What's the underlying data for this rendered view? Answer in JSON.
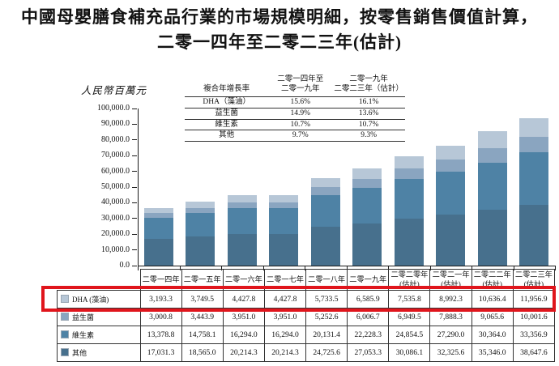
{
  "title": {
    "line1": "中國母嬰膳食補充品行業的市場規模明細，按零售銷售價值計算，",
    "line2": "二零一四年至二零二三年(估計)"
  },
  "y_axis": {
    "label": "人民幣百萬元",
    "ticks": [
      "100,000.0",
      "90,000.0",
      "80,000.0",
      "70,000.0",
      "60,000.0",
      "50,000.0",
      "40,000.0",
      "30,000.0",
      "20,000.0",
      "10,000.0",
      "0.0"
    ]
  },
  "cagr_table": {
    "col1_header": "複合年增長率",
    "col2_header": "二零一四年至\n二零一九年",
    "col3_header": "二零一九年\n二零二三年（估計）",
    "rows": [
      {
        "label": "DHA（藻油）",
        "cagr_2014_2019": "15.6%",
        "cagr_2019_2023": "16.1%"
      },
      {
        "label": "益生菌",
        "cagr_2014_2019": "14.9%",
        "cagr_2019_2023": "13.6%"
      },
      {
        "label": "維生素",
        "cagr_2014_2019": "10.7%",
        "cagr_2019_2023": "10.7%"
      },
      {
        "label": "其他",
        "cagr_2014_2019": "9.7%",
        "cagr_2019_2023": "9.3%"
      }
    ]
  },
  "chart_data": {
    "type": "bar",
    "stacked": true,
    "title": "中國母嬰膳食補充品行業的市場規模明細，按零售銷售價值計算，二零一四年至二零二三年(估計)",
    "ylabel": "人民幣百萬元",
    "ylim": [
      0,
      100000
    ],
    "ytick_step": 10000,
    "grid": false,
    "legend_position": "bottom-table",
    "stack_order_bottom_to_top": [
      "其他",
      "維生素",
      "益生菌",
      "DHA（藻油）"
    ],
    "categories": [
      "二零一四年",
      "二零一五年",
      "二零一六年",
      "二零一七年",
      "二零一八年",
      "二零一九年",
      "二零二零年\n(估計)",
      "二零二一年\n(估計)",
      "二零二二年\n(估計)",
      "二零二三年\n(估計)"
    ],
    "series": [
      {
        "name": "DHA（藻油）",
        "color": "#b7c7d7",
        "values": [
          3193.3,
          3749.5,
          4427.8,
          4427.8,
          5733.5,
          6585.9,
          7535.8,
          8992.3,
          10636.4,
          11956.9
        ]
      },
      {
        "name": "益生菌",
        "color": "#8aa5c0",
        "values": [
          3000.8,
          3443.9,
          3951.0,
          3951.0,
          5252.6,
          6006.7,
          6949.5,
          7888.3,
          9065.6,
          10001.6
        ]
      },
      {
        "name": "維生素",
        "color": "#4e82a5",
        "values": [
          13378.8,
          14758.1,
          16294.0,
          16294.0,
          20131.4,
          22228.3,
          24854.5,
          27290.0,
          30364.0,
          33356.9
        ]
      },
      {
        "name": "其他",
        "color": "#47708d",
        "values": [
          17031.3,
          18565.0,
          20214.3,
          20214.3,
          24725.6,
          27053.3,
          30086.1,
          32325.6,
          35346.0,
          38647.6
        ]
      }
    ]
  },
  "data_table": {
    "rows": [
      {
        "label": "DHA (藻油)",
        "swatch": "#b7c7d7",
        "highlighted": true,
        "values": [
          "3,193.3",
          "3,749.5",
          "4,427.8",
          "4,427.8",
          "5,733.5",
          "6,585.9",
          "7,535.8",
          "8,992.3",
          "10,636.4",
          "11,956.9"
        ]
      },
      {
        "label": "益生菌",
        "swatch": "#8aa5c0",
        "highlighted": false,
        "values": [
          "3,000.8",
          "3,443.9",
          "3,951.0",
          "3,951.0",
          "5,252.6",
          "6,006.7",
          "6,949.5",
          "7,888.3",
          "9,065.6",
          "10,001.6"
        ]
      },
      {
        "label": "維生素",
        "swatch": "#4e82a5",
        "highlighted": false,
        "values": [
          "13,378.8",
          "14,758.1",
          "16,294.0",
          "16,294.0",
          "20,131.4",
          "22,228.3",
          "24,854.5",
          "27,290.0",
          "30,364.0",
          "33,356.9"
        ]
      },
      {
        "label": "其他",
        "swatch": "#47708d",
        "highlighted": false,
        "values": [
          "17,031.3",
          "18,565.0",
          "20,214.3",
          "20,214.3",
          "24,725.6",
          "27,053.3",
          "30,086.1",
          "32,325.6",
          "35,346.0",
          "38,647.6"
        ]
      }
    ]
  },
  "highlight": {
    "color": "#e0151c"
  }
}
